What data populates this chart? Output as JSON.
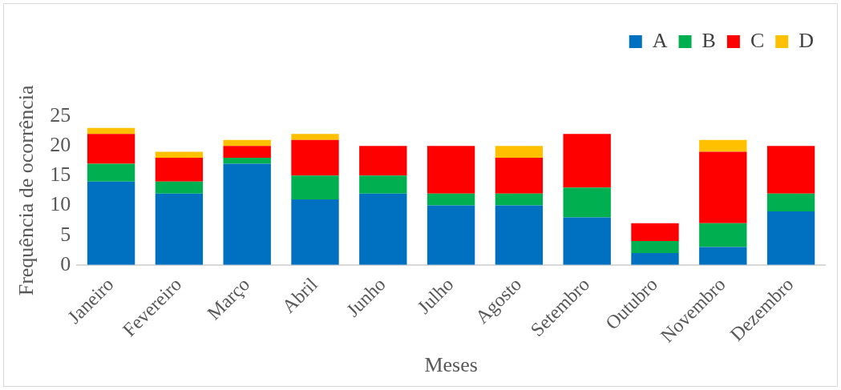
{
  "chart_data": {
    "type": "bar",
    "stacked": true,
    "xlabel": "Meses",
    "ylabel": "Frequência de ocorrência",
    "categories": [
      "Janeiro",
      "Fevereiro",
      "Março",
      "Abril",
      "Junho",
      "Julho",
      "Agosto",
      "Setembro",
      "Outubro",
      "Novembro",
      "Dezembro"
    ],
    "series": [
      {
        "name": "A",
        "color": "#0070c0",
        "values": [
          14,
          12,
          17,
          11,
          12,
          10,
          10,
          8,
          2,
          3,
          9
        ]
      },
      {
        "name": "B",
        "color": "#00b050",
        "values": [
          3,
          2,
          1,
          4,
          3,
          2,
          2,
          5,
          2,
          4,
          3
        ]
      },
      {
        "name": "C",
        "color": "#ff0000",
        "values": [
          5,
          4,
          2,
          6,
          5,
          8,
          6,
          9,
          3,
          12,
          8
        ]
      },
      {
        "name": "D",
        "color": "#ffc000",
        "values": [
          1,
          1,
          1,
          1,
          0,
          0,
          2,
          0,
          0,
          2,
          0
        ]
      }
    ],
    "ylim": [
      0,
      25
    ],
    "yticks": [
      0,
      5,
      10,
      15,
      20,
      25
    ],
    "grid": false,
    "legend": "top right"
  }
}
